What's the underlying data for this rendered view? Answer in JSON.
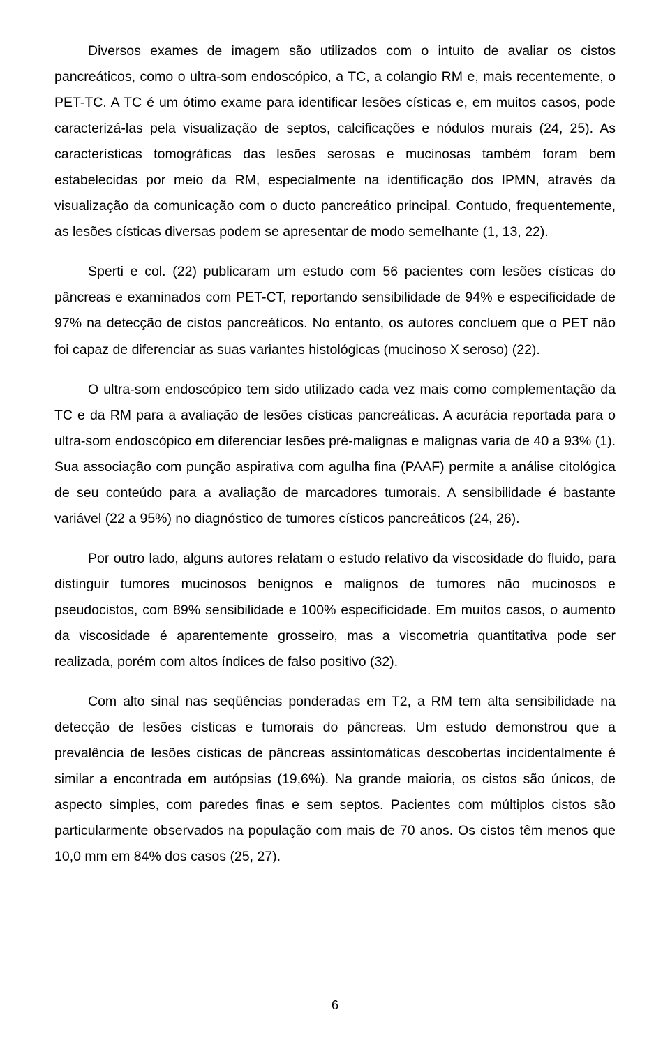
{
  "paragraphs": [
    "Diversos exames de imagem são utilizados com o intuito de avaliar os cistos pancreáticos, como o ultra-som endoscópico, a TC, a colangio RM e, mais recentemente, o PET-TC. A TC é um ótimo exame para identificar lesões císticas e, em muitos casos, pode caracterizá-las pela visualização de septos, calcificações e nódulos murais (24, 25). As características tomográficas das lesões serosas e mucinosas também foram bem estabelecidas por meio da RM, especialmente na identificação dos IPMN, através da visualização da comunicação com o ducto pancreático principal. Contudo, frequentemente, as lesões císticas diversas podem se apresentar de modo semelhante (1, 13, 22).",
    "Sperti e col. (22) publicaram um estudo com 56 pacientes com lesões císticas do pâncreas e examinados com PET-CT, reportando sensibilidade de 94% e especificidade de 97% na detecção de cistos pancreáticos. No entanto, os autores concluem que o PET não foi capaz de diferenciar as suas variantes histológicas (mucinoso X seroso) (22).",
    "O ultra-som endoscópico tem sido utilizado cada vez mais como complementação da TC e da RM para a avaliação de lesões císticas pancreáticas. A acurácia reportada para o ultra-som endoscópico em diferenciar lesões pré-malignas e malignas varia de 40 a 93% (1). Sua associação com punção aspirativa com agulha fina (PAAF) permite a análise citológica de seu conteúdo para a avaliação de marcadores tumorais. A sensibilidade é bastante variável (22 a 95%) no diagnóstico de tumores císticos pancreáticos (24, 26).",
    "Por outro lado, alguns autores relatam o estudo relativo da viscosidade do fluido, para distinguir tumores mucinosos benignos e malignos de tumores não mucinosos e pseudocistos, com 89% sensibilidade e 100% especificidade. Em muitos casos, o aumento da viscosidade é aparentemente grosseiro, mas a viscometria quantitativa pode ser realizada, porém com altos índices de falso positivo (32).",
    "Com alto sinal nas seqüências ponderadas em T2, a RM tem alta sensibilidade na detecção de lesões císticas e tumorais do pâncreas. Um estudo demonstrou que a prevalência de lesões císticas de pâncreas assintomáticas descobertas incidentalmente é similar a encontrada em autópsias (19,6%). Na grande maioria, os cistos são únicos, de aspecto simples, com paredes finas e sem septos. Pacientes com múltiplos cistos são particularmente observados na população com mais de 70 anos. Os cistos têm menos que 10,0 mm em 84% dos casos (25, 27)."
  ],
  "page_number": "6"
}
